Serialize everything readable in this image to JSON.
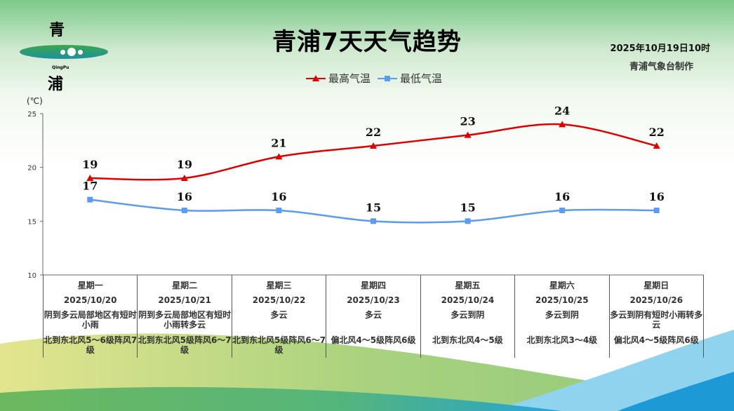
{
  "header": {
    "title": "青浦7天天气趋势",
    "issued": "2025年10月19日10时",
    "maker": "青浦气象台制作",
    "logo_text": "青 QingPu 浦"
  },
  "colors": {
    "high": "#e00000",
    "low": "#5b9bf0"
  },
  "chart_data": {
    "type": "line",
    "title": "青浦7天天气趋势",
    "ylabel": "(℃)",
    "ylim": [
      10,
      25
    ],
    "yticks": [
      "10",
      "15",
      "20",
      "25"
    ],
    "legend": "top-center",
    "categories": [
      "2025/10/20",
      "2025/10/21",
      "2025/10/22",
      "2025/10/23",
      "2025/10/24",
      "2025/10/25",
      "2025/10/26"
    ],
    "series": [
      {
        "name": "最高气温",
        "values": [
          19,
          19,
          21,
          22,
          23,
          24,
          22
        ]
      },
      {
        "name": "最低气温",
        "values": [
          17,
          16,
          16,
          15,
          15,
          16,
          16
        ]
      }
    ]
  },
  "days": [
    {
      "weekday": "星期一",
      "date": "2025/10/20",
      "weather": "阴到多云局部地区有短时小雨",
      "wind": "北到东北风5～6级阵风7级"
    },
    {
      "weekday": "星期二",
      "date": "2025/10/21",
      "weather": "阴到多云局部地区有短时小雨转多云",
      "wind": "北到东北风5级阵风6～7级"
    },
    {
      "weekday": "星期三",
      "date": "2025/10/22",
      "weather": "多云",
      "wind": "北到东北风5级阵风6～7级"
    },
    {
      "weekday": "星期四",
      "date": "2025/10/23",
      "weather": "多云",
      "wind": "偏北风4～5级阵风6级"
    },
    {
      "weekday": "星期五",
      "date": "2025/10/24",
      "weather": "多云到阴",
      "wind": "北到东北风4～5级"
    },
    {
      "weekday": "星期六",
      "date": "2025/10/25",
      "weather": "多云到阴",
      "wind": "北到东北风3～4级"
    },
    {
      "weekday": "星期日",
      "date": "2025/10/26",
      "weather": "多云到阴有短时小雨转多云",
      "wind": "偏北风4～5级阵风6级"
    }
  ]
}
